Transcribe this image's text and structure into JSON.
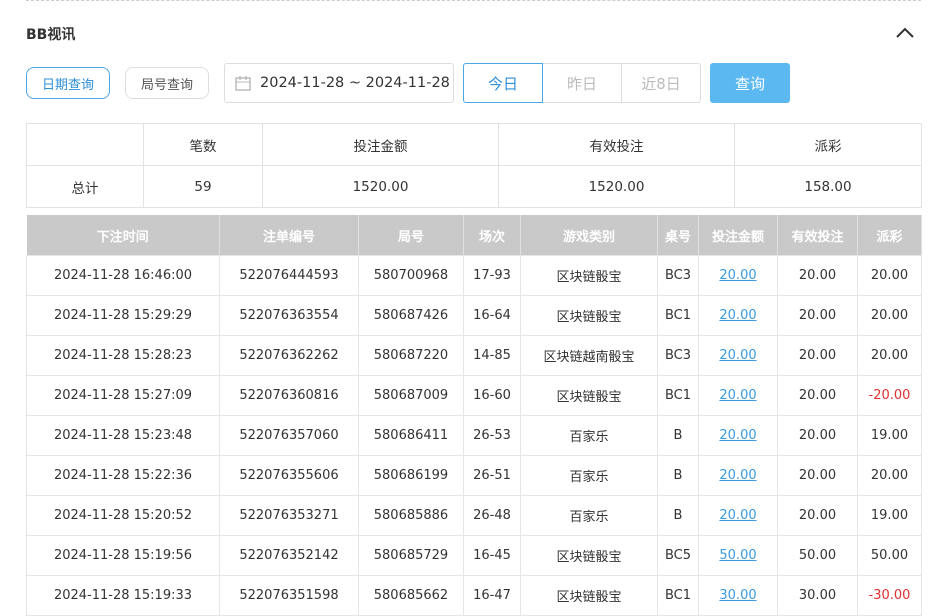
{
  "header": {
    "title": "BB视讯"
  },
  "filters": {
    "tabs": [
      "日期查询",
      "局号查询"
    ],
    "date_range": "2024-11-28 ~ 2024-11-28",
    "quick_ranges": [
      "今日",
      "昨日",
      "近8日"
    ],
    "query_button": "查询"
  },
  "summary": {
    "columns": [
      "笔数",
      "投注金额",
      "有效投注",
      "派彩"
    ],
    "row": [
      "总计",
      "59",
      "1520.00",
      "1520.00",
      "158.00"
    ]
  },
  "table": {
    "columns": [
      "下注时间",
      "注单编号",
      "局号",
      "场次",
      "游戏类别",
      "桌号",
      "投注金额",
      "有效投注",
      "派彩"
    ],
    "rows": [
      [
        "2024-11-28 16:46:00",
        "522076444593",
        "580700968",
        "17-93",
        "区块链骰宝",
        "BC3",
        "20.00",
        "20.00",
        "20.00"
      ],
      [
        "2024-11-28 15:29:29",
        "522076363554",
        "580687426",
        "16-64",
        "区块链骰宝",
        "BC1",
        "20.00",
        "20.00",
        "20.00"
      ],
      [
        "2024-11-28 15:28:23",
        "522076362262",
        "580687220",
        "14-85",
        "区块链越南骰宝",
        "BC3",
        "20.00",
        "20.00",
        "20.00"
      ],
      [
        "2024-11-28 15:27:09",
        "522076360816",
        "580687009",
        "16-60",
        "区块链骰宝",
        "BC1",
        "20.00",
        "20.00",
        "-20.00"
      ],
      [
        "2024-11-28 15:23:48",
        "522076357060",
        "580686411",
        "26-53",
        "百家乐",
        "B",
        "20.00",
        "20.00",
        "19.00"
      ],
      [
        "2024-11-28 15:22:36",
        "522076355606",
        "580686199",
        "26-51",
        "百家乐",
        "B",
        "20.00",
        "20.00",
        "20.00"
      ],
      [
        "2024-11-28 15:20:52",
        "522076353271",
        "580685886",
        "26-48",
        "百家乐",
        "B",
        "20.00",
        "20.00",
        "19.00"
      ],
      [
        "2024-11-28 15:19:56",
        "522076352142",
        "580685729",
        "16-45",
        "区块链骰宝",
        "BC5",
        "50.00",
        "50.00",
        "50.00"
      ],
      [
        "2024-11-28 15:19:33",
        "522076351598",
        "580685662",
        "16-47",
        "区块链骰宝",
        "BC1",
        "30.00",
        "30.00",
        "-30.00"
      ]
    ]
  }
}
